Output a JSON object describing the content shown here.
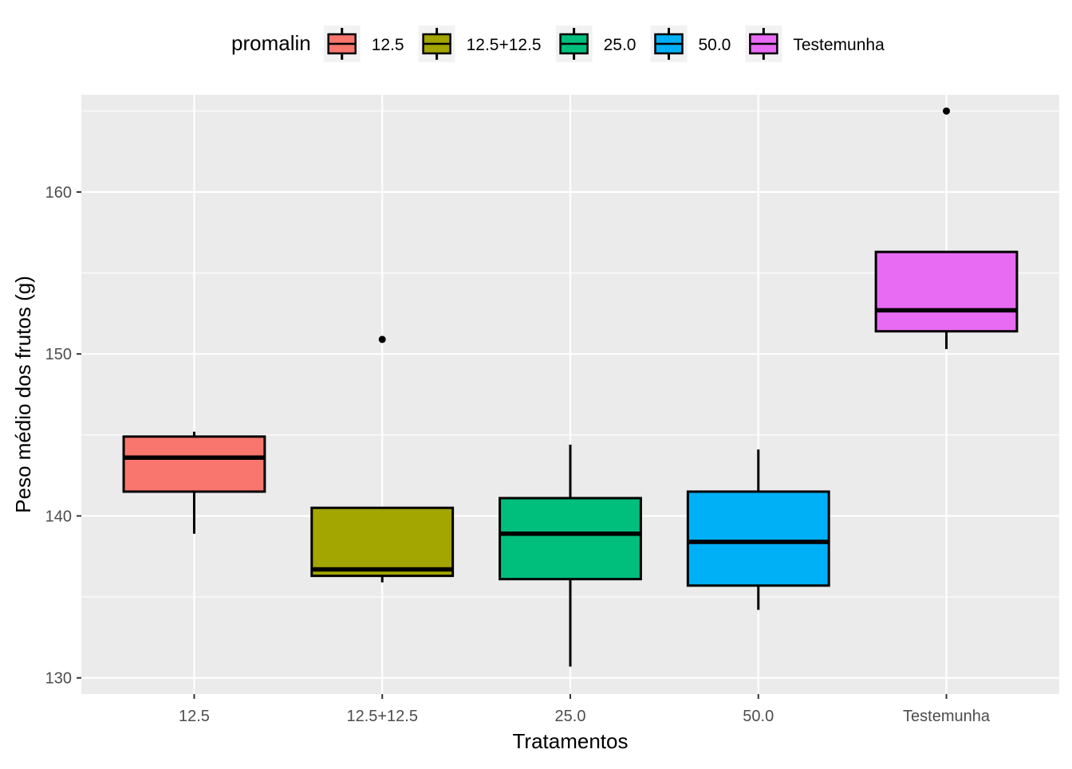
{
  "chart_data": {
    "type": "box",
    "title": "",
    "xlabel": "Tratamentos",
    "ylabel": "Peso médio dos frutos (g)",
    "ylim": [
      129,
      166
    ],
    "yticks": [
      130,
      140,
      150,
      160
    ],
    "ytick_labels": [
      "130",
      "140",
      "150",
      "160"
    ],
    "grid": true,
    "legend": {
      "title": "promalin",
      "position": "top"
    },
    "categories": [
      "12.5",
      "12.5+12.5",
      "25.0",
      "50.0",
      "Testemunha"
    ],
    "series": [
      {
        "name": "12.5",
        "color": "#F8766D",
        "min": 138.9,
        "q1": 141.5,
        "median": 143.6,
        "q3": 144.9,
        "max": 145.2,
        "outliers": []
      },
      {
        "name": "12.5+12.5",
        "color": "#A3A500",
        "min": 135.9,
        "q1": 136.3,
        "median": 136.7,
        "q3": 140.5,
        "max": 140.5,
        "outliers": [
          150.9
        ]
      },
      {
        "name": "25.0",
        "color": "#00BF7D",
        "min": 130.7,
        "q1": 136.1,
        "median": 138.9,
        "q3": 141.1,
        "max": 144.4,
        "outliers": []
      },
      {
        "name": "50.0",
        "color": "#00B0F6",
        "min": 134.2,
        "q1": 135.7,
        "median": 138.4,
        "q3": 141.5,
        "max": 144.1,
        "outliers": []
      },
      {
        "name": "Testemunha",
        "color": "#E76BF3",
        "min": 150.3,
        "q1": 151.4,
        "median": 152.7,
        "q3": 156.3,
        "max": 156.3,
        "outliers": [
          165
        ]
      }
    ]
  }
}
